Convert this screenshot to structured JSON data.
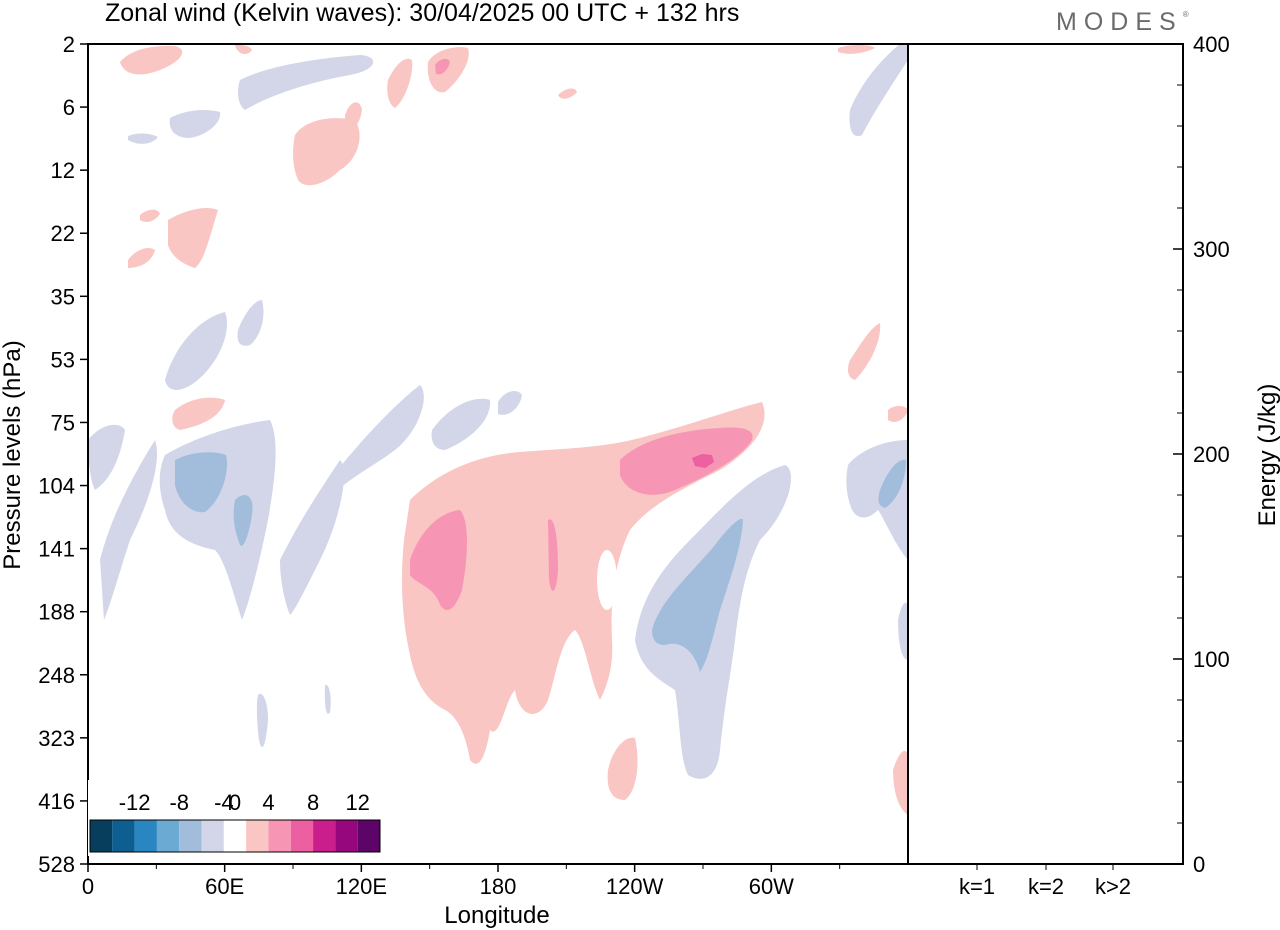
{
  "header": {
    "title": "Zonal wind (Kelvin waves):  30/04/2025  00 UTC  + 132 hrs",
    "logo": "MODES"
  },
  "chart_data": [
    {
      "type": "heatmap",
      "title": "Zonal wind (Kelvin waves):  30/04/2025  00 UTC  + 132 hrs",
      "xlabel": "Longitude",
      "ylabel": "Pressure levels (hPa)",
      "x_ticks": [
        "0",
        "60E",
        "120E",
        "180",
        "120W",
        "60W"
      ],
      "y_ticks": [
        "2",
        "6",
        "12",
        "22",
        "35",
        "53",
        "75",
        "104",
        "141",
        "188",
        "248",
        "323",
        "416",
        "528"
      ],
      "colorbar": {
        "tick_labels": [
          "-12",
          "-8",
          "-4",
          "0",
          "4",
          "8",
          "12"
        ],
        "levels": [
          -14,
          -12,
          -10,
          -8,
          -6,
          -4,
          -2,
          2,
          4,
          6,
          8,
          10,
          12,
          14
        ],
        "colors": [
          "#083e5d",
          "#0d5f92",
          "#2a86c0",
          "#6aaad3",
          "#a2bddc",
          "#d3d6e8",
          "#ffffff",
          "#f9c6c4",
          "#f796b4",
          "#ec5fa0",
          "#c91e8c",
          "#96067d",
          "#5c0468"
        ]
      },
      "regions": [
        {
          "level": 4,
          "lon": [
            150,
            270
          ],
          "p": [
            70,
            300
          ],
          "note": "positive anomaly centered near 180 in upper troposphere"
        },
        {
          "level": 6,
          "lon": [
            250,
            265
          ],
          "p": [
            80,
            110
          ]
        },
        {
          "level": 8,
          "lon": [
            259,
            262
          ],
          "p": [
            88,
            95
          ]
        },
        {
          "level": 6,
          "lon": [
            160,
            175
          ],
          "p": [
            120,
            190
          ]
        },
        {
          "level": -4,
          "lon": [
            235,
            290
          ],
          "p": [
            100,
            330
          ]
        },
        {
          "level": -6,
          "lon": [
            250,
            265
          ],
          "p": [
            140,
            230
          ]
        },
        {
          "level": -4,
          "lon": [
            25,
            75
          ],
          "p": [
            75,
            190
          ]
        },
        {
          "level": -6,
          "lon": [
            30,
            45
          ],
          "p": [
            95,
            120
          ]
        },
        {
          "level": 4,
          "lon": [
            30,
            65
          ],
          "p": [
            2,
            35
          ]
        },
        {
          "level": -4,
          "lon": [
            55,
            80
          ],
          "p": [
            2,
            12
          ]
        },
        {
          "level": -4,
          "lon": [
            345,
            360
          ],
          "p": [
            2,
            12
          ]
        },
        {
          "level": -4,
          "lon": [
            345,
            360
          ],
          "p": [
            90,
            250
          ]
        },
        {
          "level": 4,
          "lon": [
            345,
            360
          ],
          "p": [
            350,
            520
          ]
        }
      ]
    },
    {
      "type": "bar",
      "categories": [
        "k=1",
        "k=2",
        "k>2"
      ],
      "values": [
        0.3,
        0.2,
        0.2
      ],
      "ylabel": "Energy (J/kg)",
      "ylim": [
        0,
        400
      ],
      "y_ticks": [
        0,
        100,
        200,
        300,
        400
      ]
    }
  ]
}
